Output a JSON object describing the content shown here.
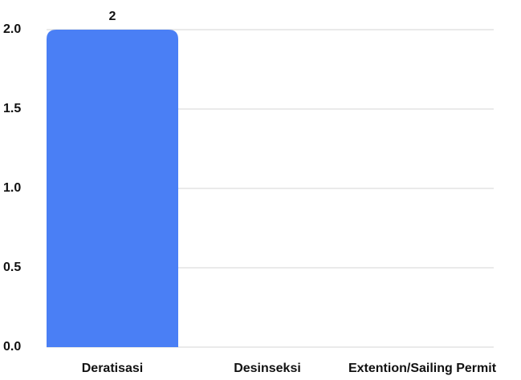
{
  "chart_data": {
    "type": "bar",
    "categories": [
      "Deratisasi",
      "Desinseksi",
      "Extention/Sailing Permit"
    ],
    "values": [
      2,
      0,
      0
    ],
    "color": "#4a7ff5",
    "ylim": [
      0,
      2
    ],
    "yticks": [
      {
        "value": 0,
        "label": "0.0"
      },
      0.5,
      {
        "value": 1,
        "label": "1.0"
      },
      1.5,
      {
        "value": 2,
        "label": "2.0"
      }
    ],
    "grid": true
  }
}
